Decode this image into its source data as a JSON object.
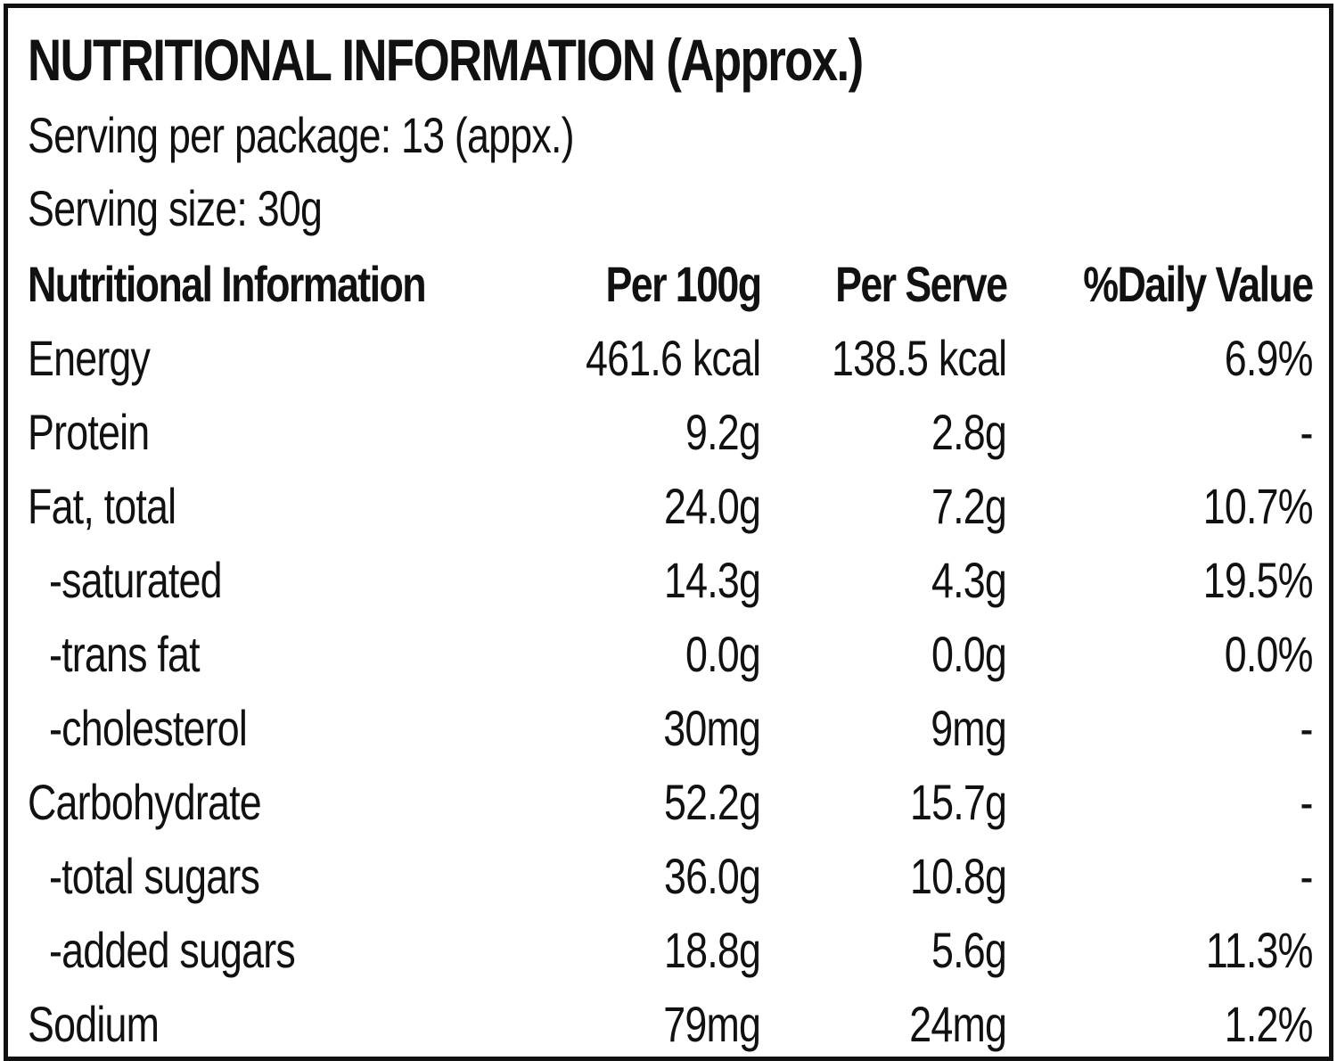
{
  "title": "NUTRITIONAL INFORMATION (Approx.)",
  "serving_per_package": "Serving per package: 13 (appx.)",
  "serving_size": "Serving size: 30g",
  "table": {
    "headers": [
      "Nutritional Information",
      "Per 100g",
      "Per Serve",
      "%Daily Value"
    ],
    "rows": [
      {
        "name": "Energy",
        "per100": "461.6 kcal",
        "perServe": "138.5 kcal",
        "dv": "6.9%",
        "indent": false
      },
      {
        "name": "Protein",
        "per100": "9.2g",
        "perServe": "2.8g",
        "dv": "-",
        "indent": false
      },
      {
        "name": "Fat, total",
        "per100": "24.0g",
        "perServe": "7.2g",
        "dv": "10.7%",
        "indent": false
      },
      {
        "name": "-saturated",
        "per100": "14.3g",
        "perServe": "4.3g",
        "dv": "19.5%",
        "indent": true
      },
      {
        "name": "-trans fat",
        "per100": "0.0g",
        "perServe": "0.0g",
        "dv": "0.0%",
        "indent": true
      },
      {
        "name": "-cholesterol",
        "per100": "30mg",
        "perServe": "9mg",
        "dv": "-",
        "indent": true
      },
      {
        "name": "Carbohydrate",
        "per100": "52.2g",
        "perServe": "15.7g",
        "dv": "-",
        "indent": false
      },
      {
        "name": "-total sugars",
        "per100": "36.0g",
        "perServe": "10.8g",
        "dv": "-",
        "indent": true
      },
      {
        "name": "-added sugars",
        "per100": "18.8g",
        "perServe": "5.6g",
        "dv": "11.3%",
        "indent": true
      },
      {
        "name": "Sodium",
        "per100": "79mg",
        "perServe": "24mg",
        "dv": "1.2%",
        "indent": false
      }
    ]
  }
}
